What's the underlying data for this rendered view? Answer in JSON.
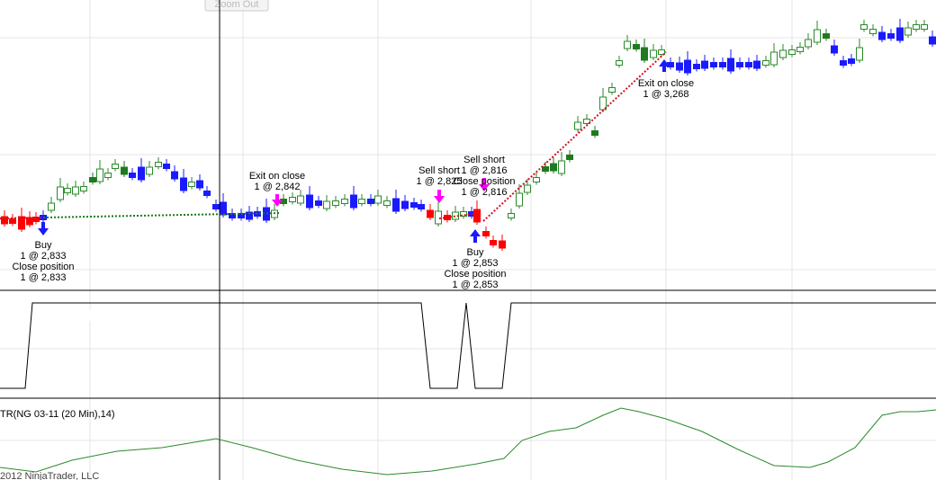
{
  "zoom_button": "Zoom Out",
  "annotations": [
    {
      "lines": [
        "Buy",
        "1 @ 2,833",
        "Close position",
        "1 @ 2,833"
      ]
    },
    {
      "lines": [
        "Exit on close",
        "1 @ 2,842"
      ]
    },
    {
      "lines": [
        "Sell short",
        "1 @ 2,825"
      ]
    },
    {
      "lines": [
        "Sell short",
        "1 @ 2,816",
        "Close position",
        "1 @ 2,816"
      ]
    },
    {
      "lines": [
        "Buy",
        "1 @ 2,853",
        "Close position",
        "1 @ 2,853"
      ]
    },
    {
      "lines": [
        "Exit on close",
        "1 @ 3,268"
      ]
    }
  ],
  "indicator_label": "TR(NG 03-11 (20 Min),14)",
  "copyright": "2012 NinjaTrader, LLC"
}
